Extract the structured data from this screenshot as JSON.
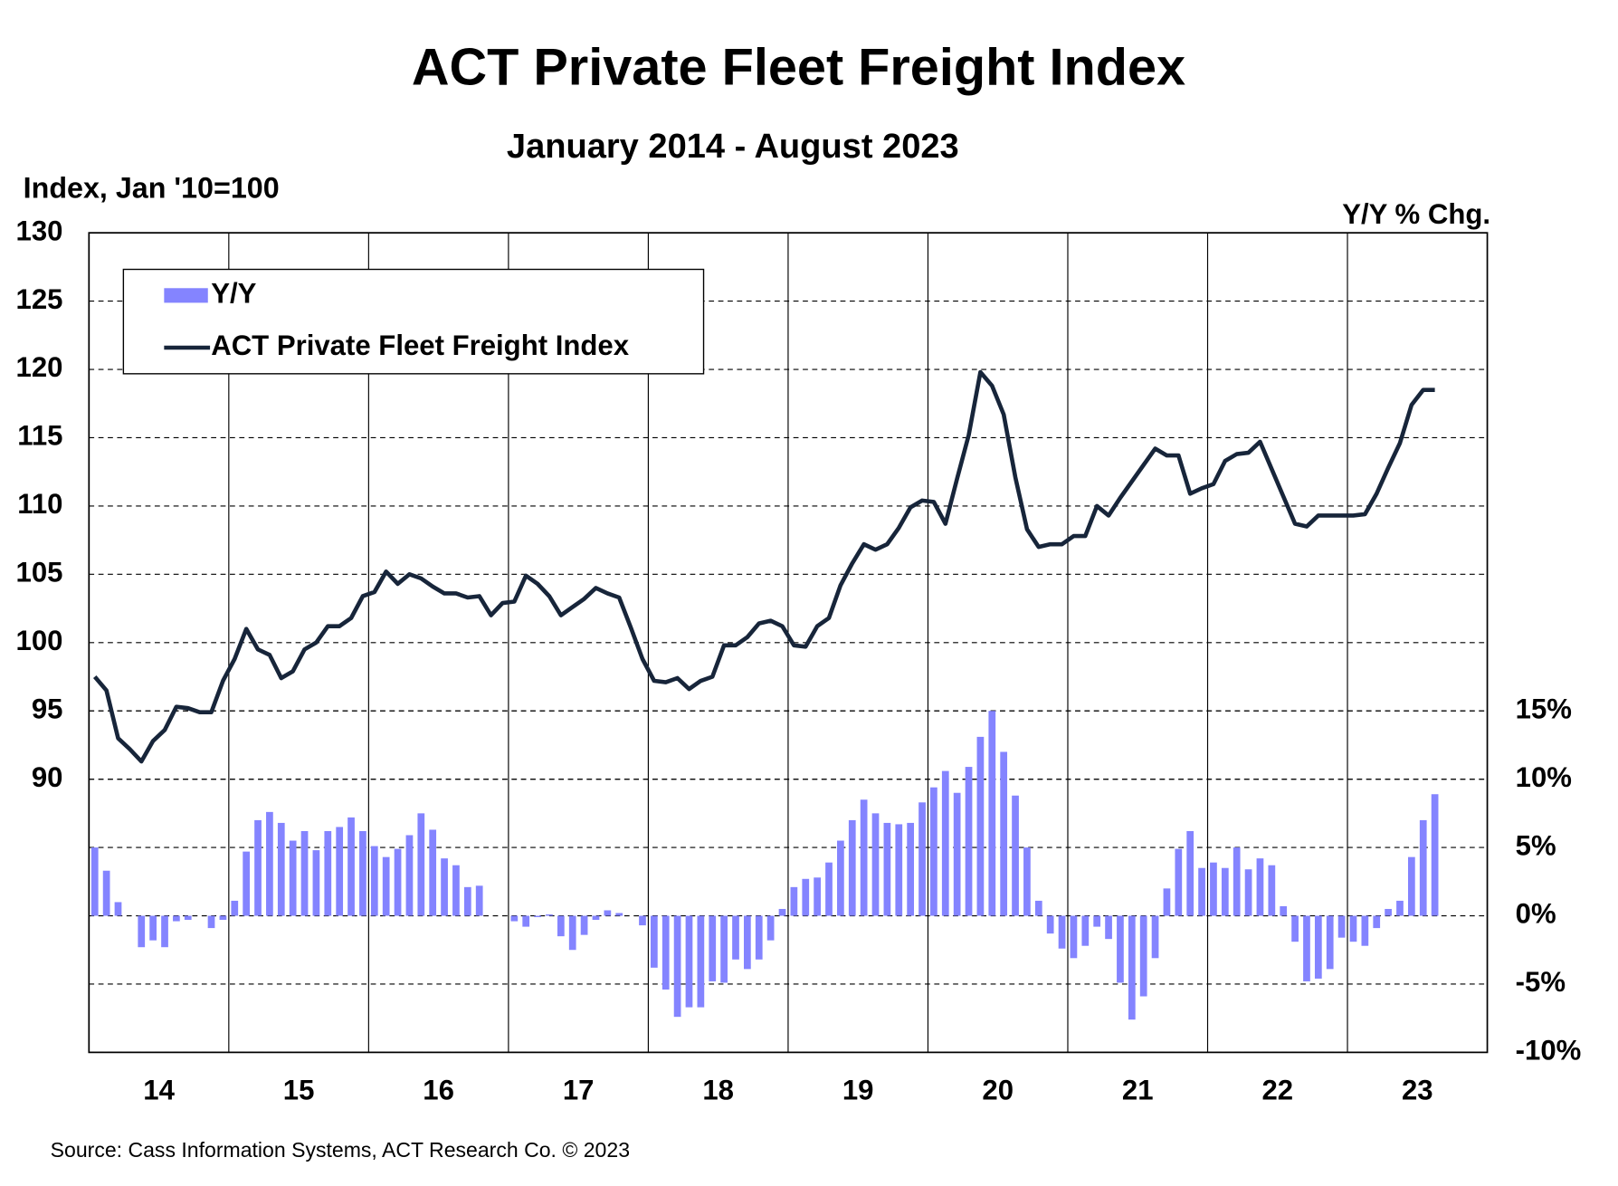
{
  "chart_data": {
    "type": "bar",
    "title": "ACT Private Fleet Freight Index",
    "subtitle": "January 2014 - August 2023",
    "y_label": "Index, Jan '10=100",
    "y2_label": "Y/Y % Chg.",
    "source": "Source:  Cass Information  Systems, ACT Research  Co. © 2023",
    "categories": [
      null,
      null,
      null,
      null,
      null,
      null,
      "14",
      null,
      null,
      null,
      null,
      null,
      null,
      null,
      null,
      null,
      null,
      null,
      "15",
      null,
      null,
      null,
      null,
      null,
      null,
      null,
      null,
      null,
      null,
      null,
      "16",
      null,
      null,
      null,
      null,
      null,
      null,
      null,
      null,
      null,
      null,
      null,
      "17",
      null,
      null,
      null,
      null,
      null,
      null,
      null,
      null,
      null,
      null,
      null,
      "18",
      null,
      null,
      null,
      null,
      null,
      null,
      null,
      null,
      null,
      null,
      null,
      "19",
      null,
      null,
      null,
      null,
      null,
      null,
      null,
      null,
      null,
      null,
      null,
      "20",
      null,
      null,
      null,
      null,
      null,
      null,
      null,
      null,
      null,
      null,
      null,
      "21",
      null,
      null,
      null,
      null,
      null,
      null,
      null,
      null,
      null,
      null,
      null,
      "22",
      null,
      null,
      null,
      null,
      null,
      null,
      null,
      null,
      null,
      null,
      null,
      "23",
      null,
      null,
      null,
      null,
      null
    ],
    "ylim": [
      70,
      130
    ],
    "yticks": [
      90,
      95,
      100,
      105,
      110,
      115,
      120,
      125,
      130
    ],
    "y2lim": [
      -10,
      50
    ],
    "y2ticks": [
      {
        "value": -10,
        "label": "-10%"
      },
      {
        "value": -5,
        "label": "-5%"
      },
      {
        "value": 0,
        "label": "0%"
      },
      {
        "value": 5,
        "label": "5%"
      },
      {
        "value": 10,
        "label": "10%"
      },
      {
        "value": 15,
        "label": "15%"
      }
    ],
    "grid": true,
    "legend": "upper left",
    "series": [
      {
        "name": "Y/Y",
        "type": "bar",
        "axis": "y2",
        "color": "#8484ff",
        "values": [
          5,
          3.3,
          1,
          0,
          -2.3,
          -1.8,
          -2.3,
          -0.4,
          -0.3,
          0,
          -0.9,
          -0.3,
          1.1,
          4.7,
          7,
          7.6,
          6.8,
          5.5,
          6.2,
          4.8,
          6.2,
          6.5,
          7.2,
          6.2,
          5.1,
          4.3,
          4.9,
          5.9,
          7.5,
          6.3,
          4.2,
          3.7,
          2.1,
          2.2,
          0,
          0,
          -0.4,
          -0.8,
          -0.1,
          0.1,
          -1.5,
          -2.5,
          -1.4,
          -0.3,
          0.4,
          0.2,
          0,
          -0.7,
          -3.8,
          -5.4,
          -7.4,
          -6.7,
          -6.7,
          -4.8,
          -4.9,
          -3.2,
          -3.9,
          -3.2,
          -1.8,
          0.5,
          2.1,
          2.7,
          2.8,
          3.9,
          5.5,
          7,
          8.5,
          7.5,
          6.8,
          6.7,
          6.8,
          8.3,
          9.4,
          10.6,
          9,
          10.9,
          13.1,
          15,
          12,
          8.8,
          5,
          1.1,
          -1.3,
          -2.4,
          -3.1,
          -2.2,
          -0.8,
          -1.7,
          -4.9,
          -7.6,
          -5.9,
          -3.1,
          2,
          4.9,
          6.2,
          3.5,
          3.9,
          3.5,
          5,
          3.4,
          4.2,
          3.7,
          0.7,
          -1.9,
          -4.8,
          -4.6,
          -3.9,
          -1.6,
          -1.9,
          -2.2,
          -0.9,
          0.5,
          1.1,
          4.3,
          7,
          8.9,
          null,
          null,
          null,
          null
        ]
      },
      {
        "name": "ACT Private Fleet Freight Index",
        "type": "line",
        "color": "#17253a",
        "values": [
          97.5,
          96.5,
          93,
          92.2,
          91.3,
          92.8,
          93.6,
          95.3,
          95.2,
          94.9,
          94.9,
          97.2,
          98.8,
          101,
          99.5,
          99.1,
          97.4,
          97.9,
          99.5,
          100,
          101.2,
          101.2,
          101.8,
          103.4,
          103.7,
          105.2,
          104.3,
          105,
          104.7,
          104.1,
          103.6,
          103.6,
          103.3,
          103.4,
          102,
          102.9,
          103,
          104.9,
          104.3,
          103.4,
          102,
          102.6,
          103.2,
          104,
          103.6,
          103.3,
          101.1,
          98.8,
          97.2,
          97.1,
          97.4,
          96.6,
          97.2,
          97.5,
          99.8,
          99.8,
          100.4,
          101.4,
          101.6,
          101.2,
          99.8,
          99.7,
          101.2,
          101.8,
          104.2,
          105.8,
          107.2,
          106.8,
          107.2,
          108.4,
          109.9,
          110.4,
          110.3,
          108.7,
          112,
          115.2,
          119.8,
          118.8,
          116.7,
          112.1,
          108.3,
          107,
          107.2,
          107.2,
          107.8,
          107.8,
          110,
          109.3,
          110.6,
          111.8,
          113,
          114.2,
          113.7,
          113.7,
          110.9,
          111.3,
          111.6,
          113.3,
          113.8,
          113.9,
          114.7,
          112.7,
          110.7,
          108.7,
          108.5,
          109.3,
          109.3,
          109.3,
          109.3,
          109.4,
          110.9,
          112.8,
          114.6,
          117.4,
          118.5,
          118.5,
          null,
          null,
          null,
          null
        ]
      }
    ]
  }
}
